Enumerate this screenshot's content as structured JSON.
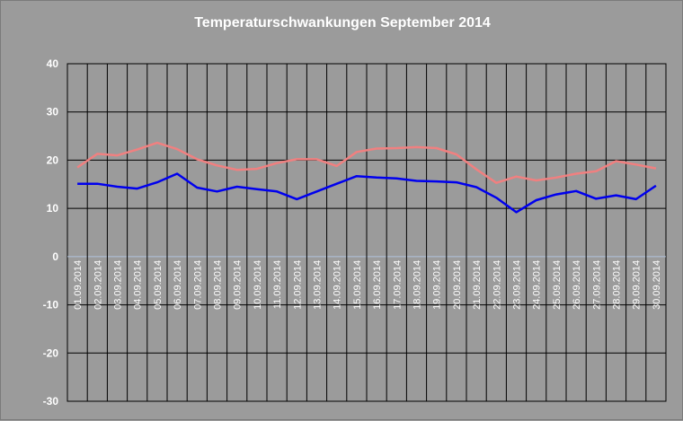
{
  "chart_data": {
    "type": "line",
    "title": "Temperaturschwankungen September 2014",
    "ylim": [
      -30,
      40
    ],
    "yticks": [
      "40",
      "30",
      "20",
      "10",
      "0",
      "-10",
      "-20",
      "-30"
    ],
    "ytick_values": [
      40,
      30,
      20,
      10,
      0,
      -10,
      -20,
      -30
    ],
    "grid": true,
    "categories": [
      "01.09.2014",
      "02.09.2014",
      "03.09.2014",
      "04.09.2014",
      "05.09.2014",
      "06.09.2014",
      "07.09.2014",
      "08.09.2014",
      "09.09.2014",
      "10.09.2014",
      "11.09.2014",
      "12.09.2014",
      "13.09.2014",
      "14.09.2014",
      "15.09.2014",
      "16.09.2014",
      "17.09.2014",
      "18.09.2014",
      "19.09.2014",
      "20.09.2014",
      "21.09.2014",
      "22.09.2014",
      "23.09.2014",
      "24.09.2014",
      "25.09.2014",
      "26.09.2014",
      "27.09.2014",
      "28.09.2014",
      "29.09.2014",
      "30.09.2014"
    ],
    "series": [
      {
        "color": "#f08080",
        "values": [
          18.5,
          21.3,
          21.0,
          22.2,
          23.6,
          22.3,
          20.2,
          18.9,
          18.0,
          18.2,
          19.4,
          20.2,
          20.2,
          18.8,
          21.7,
          22.4,
          22.5,
          22.7,
          22.5,
          21.2,
          18.1,
          15.3,
          16.6,
          15.8,
          16.4,
          17.2,
          17.7,
          19.8,
          19.1,
          18.3
        ]
      },
      {
        "color": "#0000ee",
        "values": [
          15.1,
          15.1,
          14.5,
          14.1,
          15.4,
          17.2,
          14.3,
          13.5,
          14.5,
          14.0,
          13.5,
          11.9,
          13.5,
          15.1,
          16.7,
          16.4,
          16.2,
          15.7,
          15.6,
          15.4,
          14.4,
          12.2,
          9.2,
          11.7,
          12.9,
          13.6,
          12.0,
          12.7,
          11.9,
          14.7
        ]
      }
    ],
    "colors": {
      "background": "#9b9b9b",
      "grid": "#000000",
      "zero_line": "#b0c4de",
      "text": "#ffffff"
    }
  }
}
